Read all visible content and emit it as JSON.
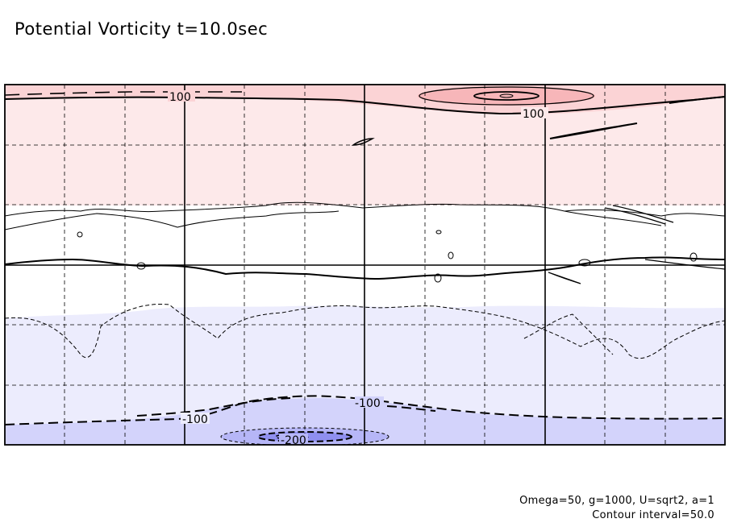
{
  "chart_data": {
    "type": "contour",
    "title": "Potential Vorticity t=10.0sec",
    "footer_line1": "Omega=50, g=1000, U=sqrt2, a=1",
    "footer_line2": "Contour interval=50.0",
    "contour_interval": 50.0,
    "contour_levels": [
      -200,
      -150,
      -100,
      -50,
      0,
      50,
      100,
      150,
      200
    ],
    "contour_labels": [
      {
        "name": "label-100-upper-left",
        "text": "100"
      },
      {
        "name": "label-100-upper-right",
        "text": "100"
      },
      {
        "name": "label-neg100-lower-left",
        "text": "-100"
      },
      {
        "name": "label-neg100-lower-mid",
        "text": "-100"
      },
      {
        "name": "label-neg200",
        "text": "-200"
      }
    ],
    "shading": {
      "positive_light": "#fde9ea",
      "positive_mid": "#fbd3d5",
      "positive_strong": "#f7b6b9",
      "negative_light": "#ececfd",
      "negative_mid": "#d3d3fb",
      "negative_strong": "#b6b6f7",
      "negative_core": "#8f8ff0"
    },
    "grid": true,
    "grid_lines": {
      "vertical": 12,
      "horizontal": 6
    },
    "negative_contours": "dashed",
    "positive_contours": "solid"
  }
}
